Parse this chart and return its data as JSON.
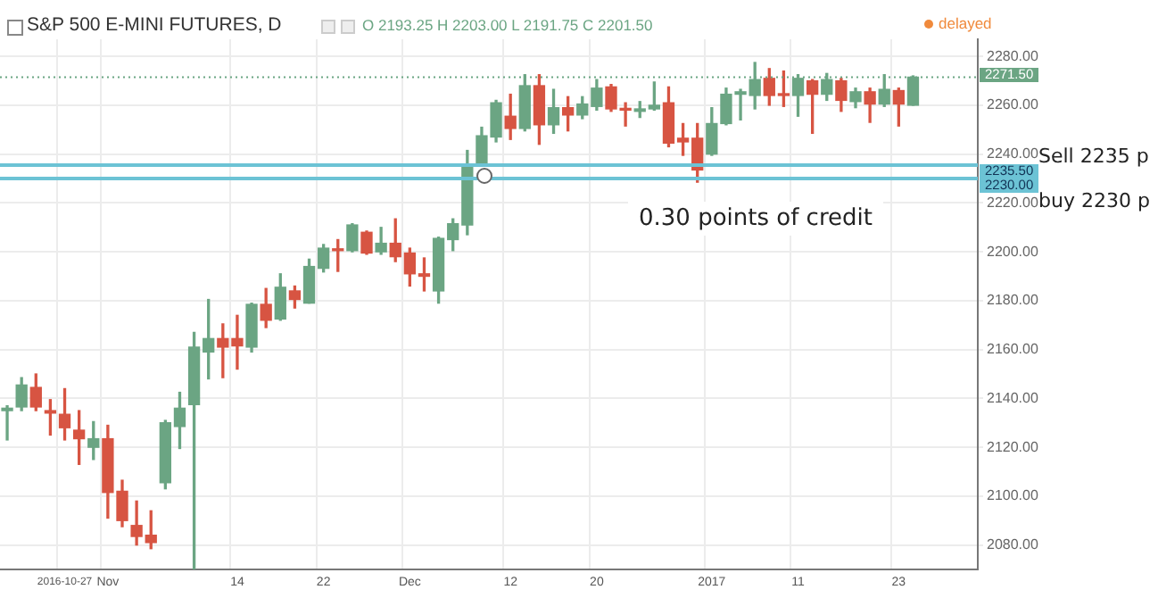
{
  "chart_data": {
    "type": "candlestick",
    "title": "S&P 500 E-MINI FUTURES, D",
    "categories": [
      null,
      null,
      null,
      null,
      "2016-10-27",
      null,
      null,
      "Nov",
      null,
      null,
      null,
      null,
      null,
      null,
      null,
      null,
      "14",
      null,
      null,
      null,
      null,
      null,
      "22",
      null,
      null,
      null,
      null,
      null,
      "Dec",
      null,
      null,
      null,
      null,
      null,
      null,
      "12",
      null,
      null,
      null,
      null,
      null,
      "20",
      null,
      null,
      null,
      null,
      null,
      null,
      null,
      "2017",
      null,
      null,
      null,
      null,
      null,
      "11",
      null,
      null,
      null,
      null,
      null,
      null,
      "23",
      null,
      null,
      null,
      null,
      null
    ],
    "ohlc": [
      [
        2135,
        2137,
        2123,
        2136
      ],
      [
        2136.5,
        2148.5,
        2135,
        2145.5
      ],
      [
        2144.5,
        2150,
        2135,
        2136.5
      ],
      [
        2135,
        2139.5,
        2125,
        2134
      ],
      [
        2133.5,
        2144,
        2123,
        2128
      ],
      [
        2127,
        2135,
        2113,
        2123.5
      ],
      [
        2120,
        2130.5,
        2115,
        2123.5
      ],
      [
        2123.5,
        2129,
        2091,
        2101.5
      ],
      [
        2102,
        2106.5,
        2087.5,
        2090
      ],
      [
        2088,
        2098,
        2080,
        2083.5
      ],
      [
        2084,
        2094,
        2078.5,
        2081
      ],
      [
        2105.5,
        2131,
        2103,
        2130
      ],
      [
        2128.5,
        2142.5,
        2119.5,
        2136
      ],
      [
        2137.5,
        2167,
        2070,
        2161
      ],
      [
        2159,
        2180.5,
        2148,
        2164.5
      ],
      [
        2164.5,
        2170.5,
        2148.5,
        2161
      ],
      [
        2164.5,
        2174,
        2152,
        2161.5
      ],
      [
        2161,
        2179,
        2159,
        2178.5
      ],
      [
        2178.5,
        2185,
        2169,
        2172
      ],
      [
        2172.5,
        2191,
        2172,
        2185.5
      ],
      [
        2184,
        2186,
        2177,
        2180.5
      ],
      [
        2179,
        2197,
        2179,
        2194
      ],
      [
        2193.25,
        2203,
        2191.75,
        2201.5
      ],
      [
        2201,
        2205,
        2192,
        2200.5
      ],
      [
        2200.5,
        2211.5,
        2200,
        2211
      ],
      [
        2208,
        2208.5,
        2199,
        2199.5
      ],
      [
        2200,
        2210,
        2199,
        2203.5
      ],
      [
        2203.5,
        2213.5,
        2196,
        2198
      ],
      [
        2199.5,
        2201.5,
        2186,
        2191
      ],
      [
        2191,
        2197.5,
        2184,
        2190
      ],
      [
        2184,
        2206,
        2179,
        2205.5
      ],
      [
        2205,
        2213.5,
        2200.5,
        2211.5
      ],
      [
        2211,
        2241.5,
        2207,
        2236
      ],
      [
        2236,
        2251,
        2235,
        2247.5
      ],
      [
        2247,
        2262,
        2245,
        2261
      ],
      [
        2255.5,
        2264.5,
        2246,
        2250.5
      ],
      [
        2250.5,
        2272.5,
        2249.5,
        2268
      ],
      [
        2268,
        2272.5,
        2244,
        2252
      ],
      [
        2252,
        2266.5,
        2248.5,
        2259
      ],
      [
        2259,
        2263.5,
        2249.5,
        2256
      ],
      [
        2256,
        2263.5,
        2254.5,
        2260.5
      ],
      [
        2259.5,
        2270.5,
        2258,
        2267
      ],
      [
        2267.5,
        2268.5,
        2257.5,
        2258.5
      ],
      [
        2258.5,
        2261,
        2251.5,
        2258
      ],
      [
        2257.5,
        2261.5,
        2255,
        2258.5
      ],
      [
        2258.5,
        2269.5,
        2258,
        2260
      ],
      [
        2261,
        2267.5,
        2243,
        2244.5
      ],
      [
        2246.5,
        2252.5,
        2239.5,
        2245
      ],
      [
        2246.5,
        2252.5,
        2228.5,
        2233.5
      ],
      [
        2240,
        2259,
        2239.5,
        2252.5
      ],
      [
        2252.5,
        2267,
        2252,
        2264.5
      ],
      [
        2264.5,
        2266.5,
        2254,
        2265.5
      ],
      [
        2264,
        2277.5,
        2258.5,
        2270.5
      ],
      [
        2271,
        2275,
        2260,
        2264
      ],
      [
        2264.5,
        2274,
        2259.5,
        2264
      ],
      [
        2264,
        2272.5,
        2255.5,
        2271
      ],
      [
        2270,
        2270.5,
        2248.5,
        2264.5
      ],
      [
        2264.5,
        2273,
        2262,
        2270.5
      ],
      [
        2270,
        2271,
        2257.5,
        2262
      ],
      [
        2261.5,
        2267,
        2259,
        2265.5
      ],
      [
        2265.5,
        2267,
        2253,
        2260.5
      ],
      [
        2260.5,
        2272.5,
        2259.5,
        2266.5
      ],
      [
        2266,
        2267,
        2251.5,
        2260.5
      ],
      [
        2260,
        2272,
        2260,
        2271.5
      ],
      null,
      null,
      null,
      null
    ],
    "colors": [
      "#6ba583",
      "#6ba583",
      "#d75442",
      "#d75442",
      "#d75442",
      "#d75442",
      "#6ba583",
      "#d75442",
      "#d75442",
      "#d75442",
      "#d75442",
      "#6ba583",
      "#6ba583",
      "#6ba583",
      "#6ba583",
      "#d75442",
      "#d75442",
      "#6ba583",
      "#d75442",
      "#6ba583",
      "#d75442",
      "#6ba583",
      "#6ba583",
      "#d75442",
      "#6ba583",
      "#d75442",
      "#6ba583",
      "#d75442",
      "#d75442",
      "#d75442",
      "#6ba583",
      "#6ba583",
      "#6ba583",
      "#6ba583",
      "#6ba583",
      "#d75442",
      "#6ba583",
      "#d75442",
      "#6ba583",
      "#d75442",
      "#6ba583",
      "#6ba583",
      "#d75442",
      "#d75442",
      "#6ba583",
      "#6ba583",
      "#d75442",
      "#d75442",
      "#d75442",
      "#6ba583",
      "#6ba583",
      "#6ba583",
      "#6ba583",
      "#d75442",
      "#d75442",
      "#6ba583",
      "#d75442",
      "#6ba583",
      "#d75442",
      "#6ba583",
      "#d75442",
      "#6ba583",
      "#d75442",
      "#6ba583",
      null,
      null,
      null,
      null
    ],
    "ylim": [
      2070,
      2287
    ],
    "yticks": [
      {
        "value": 2080,
        "label": "2080.00"
      },
      {
        "value": 2100,
        "label": "2100.00"
      },
      {
        "value": 2120,
        "label": "2120.00"
      },
      {
        "value": 2140,
        "label": "2140.00"
      },
      {
        "value": 2160,
        "label": "2160.00"
      },
      {
        "value": 2180,
        "label": "2180.00"
      },
      {
        "value": 2200,
        "label": "2200.00"
      },
      {
        "value": 2220,
        "label": "2220.00"
      },
      {
        "value": 2240,
        "label": "2240.00"
      },
      {
        "value": 2260,
        "label": "2260.00"
      },
      {
        "value": 2280,
        "label": "2280.00"
      }
    ],
    "grid": true,
    "ref_lines": [
      {
        "axis": "y",
        "value": 2271.5,
        "color": "#6ba583",
        "line_style": "dotted"
      },
      {
        "axis": "y",
        "value": 2235.5,
        "color": "#6cc3d5",
        "line_style": "solid"
      },
      {
        "axis": "y",
        "value": 2230,
        "color": "#6cc3d5",
        "line_style": "solid"
      }
    ],
    "annotations": [
      "O 2193.25 H 2203.00 L 2191.75 C 2201.50",
      "delayed",
      "0.30 points of credit",
      "Sell 2235 p",
      "buy 2230 p",
      "2271.50",
      "2235.50",
      "2230.00"
    ]
  }
}
